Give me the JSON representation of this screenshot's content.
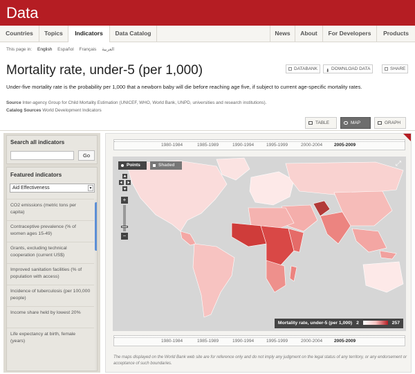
{
  "app": {
    "brand": "Data"
  },
  "nav": {
    "left": [
      "Countries",
      "Topics",
      "Indicators",
      "Data Catalog"
    ],
    "right": [
      "News",
      "About",
      "For Developers",
      "Products"
    ],
    "active": "Indicators"
  },
  "languages": {
    "prefix": "This page in:",
    "items": [
      "English",
      "Español",
      "Français",
      "العربية"
    ],
    "current": "English"
  },
  "page": {
    "title": "Mortality rate, under-5 (per 1,000)",
    "description": "Under-five mortality rate is the probability per 1,000 that a newborn baby will die before reaching age five, if subject to current age-specific mortality rates.",
    "source_label": "Source",
    "source_text": "Inter-agency Group for Child Mortality Estimation (UNICEF, WHO, World Bank, UNPD, universities and research institutions).",
    "catalog_label": "Catalog Sources",
    "catalog_text": "World Development Indicators"
  },
  "actions": {
    "databank": "DATABANK",
    "download": "DOWNLOAD DATA",
    "share": "SHARE"
  },
  "view_tabs": {
    "table": "TABLE",
    "map": "MAP",
    "graph": "GRAPH",
    "active": "MAP"
  },
  "sidebar": {
    "search_label": "Search all indicators",
    "search_value": "",
    "go_label": "Go",
    "featured_label": "Featured indicators",
    "featured_select": "Aid Effectiveness",
    "indicators": [
      "CO2 emissions (metric tons per capita)",
      "Contraceptive prevalence (% of women ages 15-49)",
      "Grants, excluding technical cooperation (current US$)",
      "Improved sanitation facilities (% of population with access)",
      "Incidence of tuberculosis (per 100,000 people)",
      "Income share held by lowest 20%",
      "Life expectancy at birth, female (years)"
    ]
  },
  "timeline": {
    "periods": [
      "1980-1984",
      "1985-1989",
      "1990-1994",
      "1995-1999",
      "2000-2004",
      "2005-2009"
    ],
    "selected": "2005-2009"
  },
  "map": {
    "modes": [
      "Points",
      "Shaded"
    ],
    "active_mode": "Points",
    "legend_label": "Mortality rate, under-5 (per 1,000)",
    "legend_min": "2",
    "legend_max": "257",
    "colors": {
      "land_low": "#f7c3c1",
      "land_mid": "#ec8480",
      "land_high": "#cf3c3a",
      "ocean": "#d6d6d6"
    }
  },
  "disclaimer": "The maps displayed on the World Bank web site are for reference only and do not imply any judgment on the legal status of any territory, or any endorsement or acceptance of such boundaries.",
  "icons": [
    "databank-icon",
    "download-icon",
    "share-icon",
    "table-icon",
    "map-icon",
    "graph-icon",
    "pan-icon",
    "zoom-in-icon",
    "zoom-out-icon",
    "expand-icon",
    "dropdown-arrow-icon"
  ]
}
